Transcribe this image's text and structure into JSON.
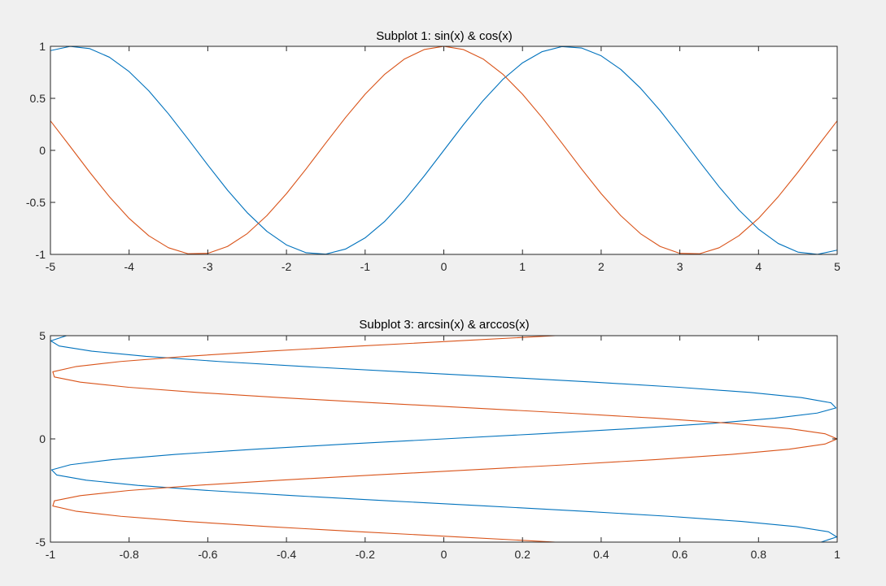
{
  "colors": {
    "figure_background": "#f0f0f0",
    "axes_background": "#ffffff",
    "axis_color": "#262626",
    "series_1": "#0072bd",
    "series_2": "#d95319"
  },
  "chart_data": [
    {
      "type": "line",
      "title": "Subplot 1: sin(x) & cos(x)",
      "xlabel": "",
      "ylabel": "",
      "xlim": [
        -5,
        5
      ],
      "ylim": [
        -1,
        1
      ],
      "xticks": [
        -5,
        -4,
        -3,
        -2,
        -1,
        0,
        1,
        2,
        3,
        4,
        5
      ],
      "yticks": [
        -1,
        -0.5,
        0,
        0.5,
        1
      ],
      "xtick_labels": [
        "-5",
        "-4",
        "-3",
        "-2",
        "-1",
        "0",
        "1",
        "2",
        "3",
        "4",
        "5"
      ],
      "ytick_labels": [
        "-1",
        "-0.5",
        "0",
        "0.5",
        "1"
      ],
      "grid": false,
      "legend": "none",
      "series": [
        {
          "function": "sin(x)",
          "color": "#0072bd",
          "x": [
            -5,
            -4.75,
            -4.5,
            -4.25,
            -4,
            -3.75,
            -3.5,
            -3.25,
            -3,
            -2.75,
            -2.5,
            -2.25,
            -2,
            -1.75,
            -1.5,
            -1.25,
            -1,
            -0.75,
            -0.5,
            -0.25,
            0,
            0.25,
            0.5,
            0.75,
            1,
            1.25,
            1.5,
            1.75,
            2,
            2.25,
            2.5,
            2.75,
            3,
            3.25,
            3.5,
            3.75,
            4,
            4.25,
            4.5,
            4.75,
            5
          ],
          "y": [
            0.959,
            0.999,
            0.978,
            0.895,
            0.757,
            0.572,
            0.351,
            0.108,
            -0.141,
            -0.382,
            -0.598,
            -0.778,
            -0.909,
            -0.984,
            -0.997,
            -0.949,
            -0.841,
            -0.682,
            -0.479,
            -0.247,
            0,
            0.247,
            0.479,
            0.682,
            0.841,
            0.949,
            0.997,
            0.984,
            0.909,
            0.778,
            0.598,
            0.382,
            0.141,
            -0.108,
            -0.351,
            -0.572,
            -0.757,
            -0.895,
            -0.978,
            -0.999,
            -0.959
          ]
        },
        {
          "function": "cos(x)",
          "color": "#d95319",
          "x": [
            -5,
            -4.75,
            -4.5,
            -4.25,
            -4,
            -3.75,
            -3.5,
            -3.25,
            -3,
            -2.75,
            -2.5,
            -2.25,
            -2,
            -1.75,
            -1.5,
            -1.25,
            -1,
            -0.75,
            -0.5,
            -0.25,
            0,
            0.25,
            0.5,
            0.75,
            1,
            1.25,
            1.5,
            1.75,
            2,
            2.25,
            2.5,
            2.75,
            3,
            3.25,
            3.5,
            3.75,
            4,
            4.25,
            4.5,
            4.75,
            5
          ],
          "y": [
            0.284,
            0.038,
            -0.211,
            -0.446,
            -0.654,
            -0.821,
            -0.936,
            -0.994,
            -0.99,
            -0.924,
            -0.801,
            -0.628,
            -0.416,
            -0.178,
            0.071,
            0.315,
            0.54,
            0.732,
            0.878,
            0.969,
            1,
            0.969,
            0.878,
            0.732,
            0.54,
            0.315,
            0.071,
            -0.178,
            -0.416,
            -0.628,
            -0.801,
            -0.924,
            -0.99,
            -0.994,
            -0.936,
            -0.821,
            -0.654,
            -0.446,
            -0.211,
            0.038,
            0.284
          ]
        }
      ]
    },
    {
      "type": "line",
      "title": "Subplot 3: arcsin(x) & arccos(x)",
      "xlabel": "",
      "ylabel": "",
      "xlim": [
        -1,
        1
      ],
      "ylim": [
        -5,
        5
      ],
      "xticks": [
        -1,
        -0.8,
        -0.6,
        -0.4,
        -0.2,
        0,
        0.2,
        0.4,
        0.6,
        0.8,
        1
      ],
      "yticks": [
        -5,
        0,
        5
      ],
      "xtick_labels": [
        "-1",
        "-0.8",
        "-0.6",
        "-0.4",
        "-0.2",
        "0",
        "0.2",
        "0.4",
        "0.6",
        "0.8",
        "1"
      ],
      "ytick_labels": [
        "-5",
        "0",
        "5"
      ],
      "grid": false,
      "legend": "none",
      "series": [
        {
          "function": "arcsin(x)",
          "color": "#0072bd",
          "x": [
            0.959,
            0.999,
            0.978,
            0.895,
            0.757,
            0.572,
            0.351,
            0.108,
            -0.141,
            -0.382,
            -0.598,
            -0.778,
            -0.909,
            -0.984,
            -0.997,
            -0.949,
            -0.841,
            -0.682,
            -0.479,
            -0.247,
            0,
            0.247,
            0.479,
            0.682,
            0.841,
            0.949,
            0.997,
            0.984,
            0.909,
            0.778,
            0.598,
            0.382,
            0.141,
            -0.108,
            -0.351,
            -0.572,
            -0.757,
            -0.895,
            -0.978,
            -0.999,
            -0.959
          ],
          "y": [
            -5,
            -4.75,
            -4.5,
            -4.25,
            -4,
            -3.75,
            -3.5,
            -3.25,
            -3,
            -2.75,
            -2.5,
            -2.25,
            -2,
            -1.75,
            -1.5,
            -1.25,
            -1,
            -0.75,
            -0.5,
            -0.25,
            0,
            0.25,
            0.5,
            0.75,
            1,
            1.25,
            1.5,
            1.75,
            2,
            2.25,
            2.5,
            2.75,
            3,
            3.25,
            3.5,
            3.75,
            4,
            4.25,
            4.5,
            4.75,
            5
          ]
        },
        {
          "function": "arccos(x)",
          "color": "#d95319",
          "x": [
            0.284,
            0.038,
            -0.211,
            -0.446,
            -0.654,
            -0.821,
            -0.936,
            -0.994,
            -0.99,
            -0.924,
            -0.801,
            -0.628,
            -0.416,
            -0.178,
            0.071,
            0.315,
            0.54,
            0.732,
            0.878,
            0.969,
            1,
            0.969,
            0.878,
            0.732,
            0.54,
            0.315,
            0.071,
            -0.178,
            -0.416,
            -0.628,
            -0.801,
            -0.924,
            -0.99,
            -0.994,
            -0.936,
            -0.821,
            -0.654,
            -0.446,
            -0.211,
            0.038,
            0.284
          ],
          "y": [
            -5,
            -4.75,
            -4.5,
            -4.25,
            -4,
            -3.75,
            -3.5,
            -3.25,
            -3,
            -2.75,
            -2.5,
            -2.25,
            -2,
            -1.75,
            -1.5,
            -1.25,
            -1,
            -0.75,
            -0.5,
            -0.25,
            0,
            0.25,
            0.5,
            0.75,
            1,
            1.25,
            1.5,
            1.75,
            2,
            2.25,
            2.5,
            2.75,
            3,
            3.25,
            3.5,
            3.75,
            4,
            4.25,
            4.5,
            4.75,
            5
          ]
        }
      ]
    }
  ]
}
